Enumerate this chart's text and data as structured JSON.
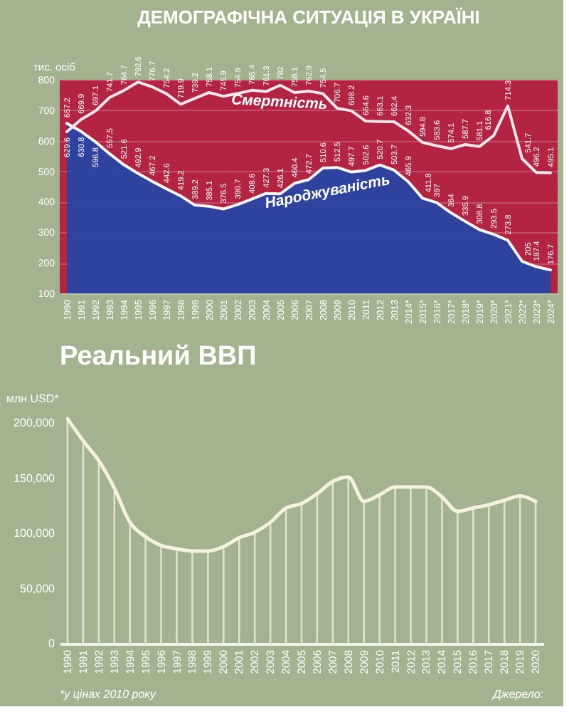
{
  "chart_data": [
    {
      "type": "line",
      "title": "ДЕМОГРАФІЧНА СИТУАЦІЯ В УКРАЇНІ",
      "ylabel": "тис. осіб",
      "categories": [
        "1990",
        "1991",
        "1992",
        "1993",
        "1994",
        "1995",
        "1996",
        "1997",
        "1998",
        "1999",
        "2000",
        "2001",
        "2002",
        "2003",
        "2004",
        "2005",
        "2006",
        "2007",
        "2008",
        "2009",
        "2010",
        "2011",
        "2012",
        "2013",
        "2014*",
        "2015*",
        "2016*",
        "2017*",
        "2018*",
        "2019*",
        "2020*",
        "2021*",
        "2022*",
        "2023*",
        "2024*"
      ],
      "series": [
        {
          "name": "Смертність",
          "color": "#f6e6ec",
          "values": [
            629.6,
            669.9,
            697.1,
            741.7,
            764.7,
            792.6,
            776.7,
            754.2,
            719.9,
            739.2,
            758.1,
            745.9,
            754.9,
            765.4,
            761.3,
            782.0,
            758.1,
            762.9,
            754.5,
            706.7,
            698.2,
            664.6,
            663.1,
            662.4,
            632.3,
            594.8,
            583.6,
            574.1,
            587.7,
            581.1,
            616.8,
            714.3,
            541.7,
            496.2,
            495.1
          ]
        },
        {
          "name": "Народжуваність",
          "type": "area",
          "color": "#2446a6",
          "values": [
            657.2,
            630.8,
            596.8,
            557.5,
            521.6,
            492.9,
            467.2,
            442.6,
            419.2,
            389.2,
            385.1,
            376.5,
            390.7,
            408.6,
            427.3,
            426.1,
            460.4,
            472.7,
            510.6,
            512.5,
            497.7,
            502.6,
            520.7,
            503.7,
            465.9,
            411.8,
            397,
            364,
            335.9,
            308.8,
            293.5,
            273.8,
            205,
            187.4,
            176.7
          ]
        }
      ],
      "ylim": [
        100,
        800
      ],
      "yticks": [
        100,
        200,
        300,
        400,
        500,
        600,
        700,
        800
      ],
      "grid": "y",
      "data_labels": true
    },
    {
      "type": "line",
      "title": "Реальний ВВП",
      "ylabel": "млн USD*",
      "categories": [
        "1990",
        "1991",
        "1992",
        "1993",
        "1994",
        "1995",
        "1996",
        "1997",
        "1998",
        "1999",
        "2000",
        "2001",
        "2002",
        "2003",
        "2004",
        "2005",
        "2006",
        "2007",
        "2008",
        "2009",
        "2010",
        "2011",
        "2012",
        "2013",
        "2014",
        "2015",
        "2016",
        "2017",
        "2018",
        "2019",
        "2020"
      ],
      "series": [
        {
          "type": "bar",
          "color": "#dfe3cf",
          "values": [
            204000,
            184000,
            166000,
            141000,
            110000,
            97000,
            89000,
            86000,
            84000,
            84000,
            88000,
            96000,
            101000,
            110000,
            123000,
            127000,
            136000,
            147000,
            151000,
            129000,
            135000,
            142000,
            142000,
            142000,
            133000,
            120000,
            123000,
            126000,
            130000,
            134000,
            129000
          ]
        },
        {
          "color": "#f4f1df",
          "values": [
            204000,
            184000,
            166000,
            141000,
            110000,
            97000,
            89000,
            86000,
            84000,
            84000,
            88000,
            96000,
            101000,
            110000,
            123000,
            127000,
            136000,
            147000,
            151000,
            129000,
            135000,
            142000,
            142000,
            142000,
            133000,
            120000,
            123000,
            126000,
            130000,
            134000,
            129000
          ]
        }
      ],
      "ylim": [
        0,
        204000
      ],
      "yticks": [
        0,
        {
          "value": 50000,
          "label": "50,000"
        },
        {
          "value": 100000,
          "label": "100,000"
        },
        {
          "value": 150000,
          "label": "150,000"
        },
        {
          "value": 200000,
          "label": "200,000"
        }
      ],
      "annotations": [
        "*у цінах 2010 року",
        "Джерело:"
      ]
    }
  ]
}
